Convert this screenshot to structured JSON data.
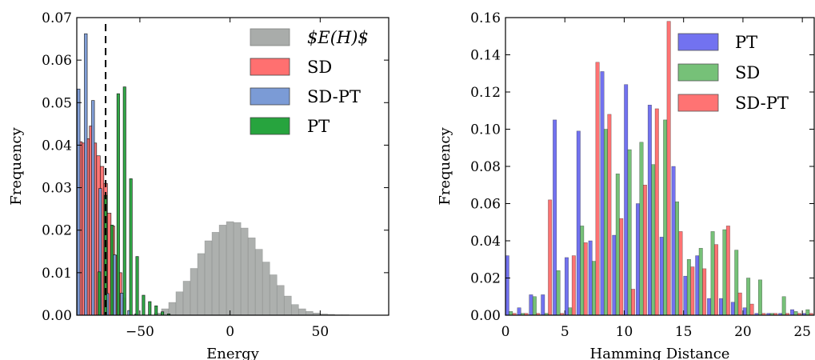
{
  "chart_data": [
    {
      "type": "histogram",
      "xlabel": "Energy",
      "ylabel": "Frequency",
      "xlim": [
        -85,
        88
      ],
      "ylim": [
        0,
        0.07
      ],
      "xticks": [
        -50,
        0,
        50
      ],
      "xtick_labels": [
        "−50",
        "0",
        "50"
      ],
      "yticks": [
        0.0,
        0.01,
        0.02,
        0.03,
        0.04,
        0.05,
        0.06,
        0.07
      ],
      "ytick_labels": [
        "0.00",
        "0.01",
        "0.02",
        "0.03",
        "0.04",
        "0.05",
        "0.06",
        "0.07"
      ],
      "grid": false,
      "legend_position": "top-right",
      "reference_line": {
        "x": -69,
        "style": "dashed"
      },
      "series": [
        {
          "name": "E(H)",
          "legend_label": "$E(H)$",
          "color": "#a9acaa",
          "edge": "#7f8280",
          "x": [
            -40,
            -36,
            -32,
            -28,
            -24,
            -20,
            -16,
            -12,
            -8,
            -4,
            0,
            4,
            8,
            12,
            16,
            20,
            24,
            28,
            32,
            36,
            40,
            44,
            48,
            52,
            56,
            60,
            64
          ],
          "values": [
            0.0005,
            0.0015,
            0.003,
            0.0055,
            0.008,
            0.011,
            0.0145,
            0.0175,
            0.0195,
            0.0212,
            0.022,
            0.0218,
            0.0205,
            0.0182,
            0.0155,
            0.0125,
            0.0095,
            0.007,
            0.0045,
            0.0025,
            0.0015,
            0.0009,
            0.0005,
            0.0003,
            0.0002,
            0.0001,
            0.0001
          ]
        },
        {
          "name": "SD",
          "color": "#ff7070",
          "x": [
            -83,
            -81,
            -79,
            -77,
            -75,
            -73,
            -71,
            -69,
            -67,
            -65,
            -63,
            -61,
            -59
          ],
          "values": [
            0.0408,
            0.0405,
            0.0415,
            0.0445,
            0.0405,
            0.0375,
            0.035,
            0.031,
            0.024,
            0.021,
            0.014,
            0.01,
            0.004
          ]
        },
        {
          "name": "SD-PT",
          "color": "#7b9bd6",
          "x": [
            -84,
            -80,
            -76,
            -72,
            -68,
            -64,
            -60,
            -56,
            -52
          ],
          "values": [
            0.0532,
            0.0662,
            0.0505,
            0.0298,
            0.0051,
            0.0142,
            0.0052,
            0.0011,
            0.0003
          ]
        },
        {
          "name": "PT",
          "color": "#27a43e",
          "x": [
            -72.5,
            -69,
            -65.5,
            -62,
            -58.5,
            -55,
            -51.5,
            -48,
            -44.5,
            -41,
            -37.5,
            -34
          ],
          "values": [
            0.0102,
            0.0282,
            0.0212,
            0.0521,
            0.0537,
            0.0321,
            0.0138,
            0.0047,
            0.0032,
            0.0022,
            0.0008,
            0.0003
          ]
        }
      ]
    },
    {
      "type": "bar",
      "xlabel": "Hamming Distance",
      "ylabel": "Frequency",
      "xlim": [
        0,
        26
      ],
      "ylim": [
        0,
        0.16
      ],
      "xticks": [
        0,
        5,
        10,
        15,
        20,
        25
      ],
      "xtick_labels": [
        "0",
        "5",
        "10",
        "15",
        "20",
        "25"
      ],
      "yticks": [
        0.0,
        0.02,
        0.04,
        0.06,
        0.08,
        0.1,
        0.12,
        0.14,
        0.16
      ],
      "ytick_labels": [
        "0.00",
        "0.02",
        "0.04",
        "0.06",
        "0.08",
        "0.10",
        "0.12",
        "0.14",
        "0.16"
      ],
      "grid": false,
      "legend_position": "top-right",
      "categories": [
        0,
        1,
        2,
        3,
        4,
        5,
        6,
        7,
        8,
        9,
        10,
        11,
        12,
        13,
        14,
        15,
        16,
        17,
        18,
        19,
        20,
        21,
        22,
        23,
        24,
        25
      ],
      "series": [
        {
          "name": "PT",
          "color": "#7272f0",
          "values": [
            0.032,
            0.004,
            0.011,
            0.011,
            0.105,
            0.031,
            0.099,
            0.04,
            0.131,
            0.043,
            0.124,
            0.06,
            0.113,
            0.042,
            0.08,
            0.021,
            0.032,
            0.009,
            0.009,
            0.007,
            0.004,
            0.001,
            0.001,
            0.001,
            0.003,
            0.001
          ]
        },
        {
          "name": "SD",
          "color": "#76c178",
          "values": [
            0.002,
            0.001,
            0.01,
            0.001,
            0.024,
            0.004,
            0.048,
            0.029,
            0.1,
            0.076,
            0.089,
            0.093,
            0.081,
            0.105,
            0.061,
            0.03,
            0.036,
            0.045,
            0.046,
            0.035,
            0.02,
            0.019,
            0.001,
            0.01,
            0.002,
            0.003
          ]
        },
        {
          "name": "SD-PT",
          "color": "#ff7373",
          "values": [
            0.001,
            0.001,
            0.001,
            0.062,
            0.001,
            0.032,
            0.039,
            0.136,
            0.108,
            0.052,
            0.014,
            0.07,
            0.111,
            0.158,
            0.045,
            0.026,
            0.025,
            0.038,
            0.048,
            0.012,
            0.006,
            0.001,
            0.001,
            0.001,
            0.001,
            0.001
          ]
        }
      ]
    }
  ]
}
